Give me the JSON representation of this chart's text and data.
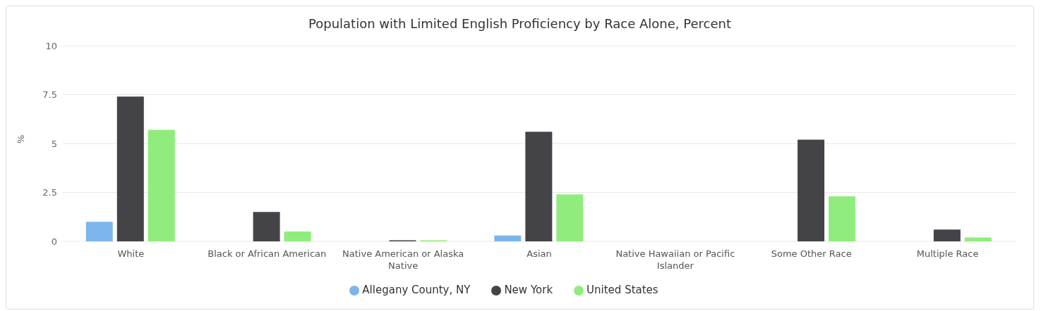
{
  "chart_data": {
    "type": "bar",
    "title": "Population with Limited English Proficiency by Race Alone, Percent",
    "ylabel": "%",
    "categories": [
      "White",
      "Black or African American",
      "Native American or Alaska Native",
      "Asian",
      "Native Hawaiian or Pacific Islander",
      "Some Other Race",
      "Multiple Race"
    ],
    "series": [
      {
        "name": "Allegany County, NY",
        "color": "#7cb5ec",
        "values": [
          1.0,
          0,
          0,
          0.3,
          0,
          0,
          0
        ]
      },
      {
        "name": "New York",
        "color": "#434348",
        "values": [
          7.4,
          1.5,
          0.05,
          5.6,
          0,
          5.2,
          0.6
        ]
      },
      {
        "name": "United States",
        "color": "#90ed7d",
        "values": [
          5.7,
          0.5,
          0.05,
          2.4,
          0,
          2.3,
          0.2
        ]
      }
    ],
    "ylim": [
      0,
      10
    ],
    "yticks": [
      0,
      2.5,
      5,
      7.5,
      10
    ],
    "grid": "y",
    "legend": "bottom"
  }
}
